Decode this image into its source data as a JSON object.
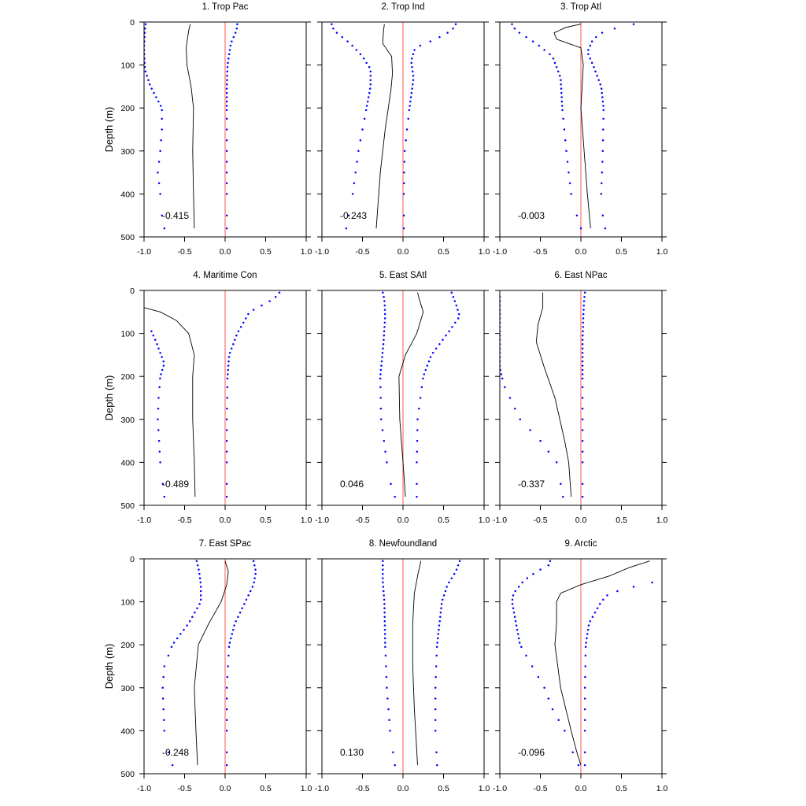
{
  "chart_data": {
    "type": "line",
    "layout": "3x3 panel grid",
    "ylabel": "Depth (m)",
    "xlim": [
      -1.0,
      1.0
    ],
    "ylim": [
      0,
      500
    ],
    "y_reversed": true,
    "xticks": [
      -1.0,
      -0.5,
      0.0,
      0.5,
      1.0
    ],
    "xtick_labels": [
      "-1.0",
      "-0.5",
      "0.0",
      "0.5",
      "1.0"
    ],
    "yticks": [
      0,
      100,
      200,
      300,
      400,
      500
    ],
    "ytick_labels": [
      "0",
      "100",
      "200",
      "300",
      "400",
      "500"
    ],
    "reference_line": {
      "x": 0,
      "color": "#ff7070"
    },
    "line_color": "#000000",
    "bound_color": "#0000ff",
    "grid": false,
    "depths": [
      5,
      15,
      25,
      35,
      45,
      55,
      65,
      75,
      85,
      95,
      105,
      115,
      125,
      135,
      145,
      155,
      165,
      175,
      185,
      195,
      205,
      225,
      250,
      275,
      300,
      325,
      350,
      375,
      400,
      450,
      480
    ],
    "panels": [
      {
        "title": "1. Trop Pac",
        "annotation": "-0.415",
        "line": [
          [
            5,
            -0.43
          ],
          [
            20,
            -0.45
          ],
          [
            60,
            -0.48
          ],
          [
            100,
            -0.47
          ],
          [
            150,
            -0.42
          ],
          [
            200,
            -0.39
          ],
          [
            300,
            -0.4
          ],
          [
            400,
            -0.39
          ],
          [
            480,
            -0.38
          ]
        ],
        "lower": [
          [
            5,
            -0.98
          ],
          [
            20,
            -0.99
          ],
          [
            60,
            -1.0
          ],
          [
            110,
            -0.99
          ],
          [
            150,
            -0.92
          ],
          [
            175,
            -0.85
          ],
          [
            200,
            -0.78
          ],
          [
            250,
            -0.78
          ],
          [
            300,
            -0.8
          ],
          [
            350,
            -0.83
          ],
          [
            400,
            -0.8
          ],
          [
            450,
            -0.78
          ],
          [
            480,
            -0.75
          ]
        ],
        "upper": [
          [
            5,
            0.15
          ],
          [
            20,
            0.14
          ],
          [
            50,
            0.07
          ],
          [
            100,
            0.03
          ],
          [
            150,
            0.02
          ],
          [
            200,
            0.02
          ],
          [
            300,
            0.02
          ],
          [
            400,
            0.02
          ],
          [
            480,
            0.02
          ]
        ]
      },
      {
        "title": "2. Trop Ind",
        "annotation": "-0.243",
        "line": [
          [
            5,
            -0.23
          ],
          [
            20,
            -0.24
          ],
          [
            50,
            -0.25
          ],
          [
            80,
            -0.14
          ],
          [
            120,
            -0.13
          ],
          [
            160,
            -0.15
          ],
          [
            250,
            -0.22
          ],
          [
            350,
            -0.28
          ],
          [
            480,
            -0.33
          ]
        ],
        "lower": [
          [
            5,
            -0.88
          ],
          [
            20,
            -0.85
          ],
          [
            50,
            -0.65
          ],
          [
            80,
            -0.5
          ],
          [
            110,
            -0.4
          ],
          [
            150,
            -0.4
          ],
          [
            200,
            -0.45
          ],
          [
            300,
            -0.55
          ],
          [
            400,
            -0.62
          ],
          [
            480,
            -0.7
          ]
        ],
        "upper": [
          [
            5,
            0.65
          ],
          [
            20,
            0.6
          ],
          [
            40,
            0.4
          ],
          [
            60,
            0.15
          ],
          [
            90,
            0.1
          ],
          [
            130,
            0.13
          ],
          [
            200,
            0.08
          ],
          [
            300,
            0.02
          ],
          [
            400,
            0.01
          ],
          [
            480,
            0.01
          ]
        ]
      },
      {
        "title": "3. Trop Atl",
        "annotation": "-0.003",
        "line": [
          [
            5,
            0.0
          ],
          [
            12,
            -0.18
          ],
          [
            25,
            -0.33
          ],
          [
            40,
            -0.3
          ],
          [
            60,
            0.0
          ],
          [
            100,
            0.03
          ],
          [
            200,
            0.0
          ],
          [
            300,
            0.04
          ],
          [
            400,
            0.08
          ],
          [
            480,
            0.12
          ]
        ],
        "lower": [
          [
            5,
            -0.85
          ],
          [
            20,
            -0.8
          ],
          [
            50,
            -0.55
          ],
          [
            80,
            -0.35
          ],
          [
            130,
            -0.25
          ],
          [
            200,
            -0.23
          ],
          [
            300,
            -0.18
          ],
          [
            400,
            -0.12
          ],
          [
            450,
            -0.05
          ],
          [
            480,
            0.0
          ]
        ],
        "upper": [
          [
            5,
            0.65
          ],
          [
            20,
            0.3
          ],
          [
            40,
            0.15
          ],
          [
            70,
            0.08
          ],
          [
            100,
            0.15
          ],
          [
            150,
            0.25
          ],
          [
            200,
            0.28
          ],
          [
            300,
            0.27
          ],
          [
            400,
            0.25
          ],
          [
            450,
            0.27
          ],
          [
            480,
            0.3
          ]
        ]
      },
      {
        "title": "4. Maritime Con",
        "annotation": "-0.489",
        "line": [
          [
            40,
            -1.0
          ],
          [
            50,
            -0.8
          ],
          [
            70,
            -0.6
          ],
          [
            100,
            -0.45
          ],
          [
            150,
            -0.38
          ],
          [
            200,
            -0.4
          ],
          [
            300,
            -0.4
          ],
          [
            400,
            -0.38
          ],
          [
            480,
            -0.37
          ]
        ],
        "lower": [
          [
            90,
            -0.92
          ],
          [
            120,
            -0.85
          ],
          [
            170,
            -0.75
          ],
          [
            200,
            -0.8
          ],
          [
            250,
            -0.82
          ],
          [
            300,
            -0.83
          ],
          [
            400,
            -0.8
          ],
          [
            480,
            -0.75
          ]
        ],
        "upper": [
          [
            5,
            0.67
          ],
          [
            20,
            0.6
          ],
          [
            50,
            0.3
          ],
          [
            100,
            0.15
          ],
          [
            150,
            0.05
          ],
          [
            200,
            0.03
          ],
          [
            300,
            0.02
          ],
          [
            400,
            0.02
          ],
          [
            480,
            0.02
          ]
        ]
      },
      {
        "title": "5. East SAtl",
        "annotation": "0.046",
        "line": [
          [
            5,
            0.18
          ],
          [
            20,
            0.2
          ],
          [
            50,
            0.25
          ],
          [
            100,
            0.17
          ],
          [
            150,
            0.03
          ],
          [
            200,
            -0.05
          ],
          [
            300,
            -0.04
          ],
          [
            400,
            0.0
          ],
          [
            480,
            0.03
          ]
        ],
        "lower": [
          [
            5,
            -0.25
          ],
          [
            20,
            -0.23
          ],
          [
            60,
            -0.22
          ],
          [
            120,
            -0.24
          ],
          [
            200,
            -0.28
          ],
          [
            300,
            -0.27
          ],
          [
            400,
            -0.2
          ],
          [
            450,
            -0.15
          ],
          [
            480,
            -0.1
          ]
        ],
        "upper": [
          [
            5,
            0.6
          ],
          [
            30,
            0.65
          ],
          [
            60,
            0.7
          ],
          [
            100,
            0.55
          ],
          [
            150,
            0.35
          ],
          [
            200,
            0.25
          ],
          [
            300,
            0.18
          ],
          [
            400,
            0.17
          ],
          [
            480,
            0.17
          ]
        ]
      },
      {
        "title": "6. East NPac",
        "annotation": "-0.337",
        "line": [
          [
            5,
            -0.47
          ],
          [
            40,
            -0.47
          ],
          [
            80,
            -0.53
          ],
          [
            120,
            -0.55
          ],
          [
            180,
            -0.45
          ],
          [
            250,
            -0.32
          ],
          [
            350,
            -0.2
          ],
          [
            400,
            -0.15
          ],
          [
            480,
            -0.12
          ]
        ],
        "lower": [
          [
            10,
            -1.0
          ],
          [
            60,
            -1.0
          ],
          [
            180,
            -1.0
          ],
          [
            220,
            -0.95
          ],
          [
            260,
            -0.85
          ],
          [
            300,
            -0.75
          ],
          [
            350,
            -0.5
          ],
          [
            400,
            -0.3
          ],
          [
            450,
            -0.25
          ],
          [
            480,
            -0.22
          ]
        ],
        "upper": [
          [
            5,
            0.05
          ],
          [
            20,
            0.04
          ],
          [
            60,
            0.03
          ],
          [
            120,
            0.02
          ],
          [
            200,
            0.02
          ],
          [
            300,
            0.02
          ],
          [
            400,
            0.02
          ],
          [
            480,
            0.02
          ]
        ]
      },
      {
        "title": "7. East SPac",
        "annotation": "-0.248",
        "line": [
          [
            5,
            0.0
          ],
          [
            30,
            0.04
          ],
          [
            60,
            0.02
          ],
          [
            100,
            -0.05
          ],
          [
            150,
            -0.2
          ],
          [
            200,
            -0.33
          ],
          [
            300,
            -0.38
          ],
          [
            400,
            -0.36
          ],
          [
            480,
            -0.34
          ]
        ],
        "lower": [
          [
            5,
            -0.35
          ],
          [
            30,
            -0.32
          ],
          [
            60,
            -0.3
          ],
          [
            100,
            -0.3
          ],
          [
            150,
            -0.45
          ],
          [
            200,
            -0.65
          ],
          [
            250,
            -0.75
          ],
          [
            300,
            -0.77
          ],
          [
            400,
            -0.75
          ],
          [
            450,
            -0.7
          ],
          [
            480,
            -0.65
          ]
        ],
        "upper": [
          [
            5,
            0.35
          ],
          [
            30,
            0.38
          ],
          [
            60,
            0.35
          ],
          [
            100,
            0.25
          ],
          [
            150,
            0.12
          ],
          [
            200,
            0.05
          ],
          [
            300,
            0.02
          ],
          [
            400,
            0.02
          ],
          [
            480,
            0.02
          ]
        ]
      },
      {
        "title": "8. Newfoundland",
        "annotation": "0.130",
        "line": [
          [
            5,
            0.22
          ],
          [
            40,
            0.18
          ],
          [
            80,
            0.14
          ],
          [
            150,
            0.12
          ],
          [
            250,
            0.12
          ],
          [
            350,
            0.14
          ],
          [
            480,
            0.18
          ]
        ],
        "lower": [
          [
            5,
            -0.25
          ],
          [
            50,
            -0.25
          ],
          [
            100,
            -0.23
          ],
          [
            200,
            -0.22
          ],
          [
            300,
            -0.2
          ],
          [
            400,
            -0.16
          ],
          [
            480,
            -0.1
          ]
        ],
        "upper": [
          [
            5,
            0.7
          ],
          [
            30,
            0.65
          ],
          [
            60,
            0.55
          ],
          [
            100,
            0.48
          ],
          [
            200,
            0.42
          ],
          [
            300,
            0.4
          ],
          [
            400,
            0.4
          ],
          [
            480,
            0.42
          ]
        ]
      },
      {
        "title": "9. Arctic",
        "annotation": "-0.096",
        "line": [
          [
            5,
            0.85
          ],
          [
            20,
            0.6
          ],
          [
            40,
            0.35
          ],
          [
            60,
            0.0
          ],
          [
            80,
            -0.25
          ],
          [
            100,
            -0.3
          ],
          [
            150,
            -0.3
          ],
          [
            200,
            -0.32
          ],
          [
            300,
            -0.25
          ],
          [
            400,
            -0.12
          ],
          [
            450,
            -0.05
          ],
          [
            480,
            0.0
          ]
        ],
        "lower": [
          [
            5,
            -0.38
          ],
          [
            15,
            -0.4
          ],
          [
            30,
            -0.55
          ],
          [
            50,
            -0.7
          ],
          [
            80,
            -0.83
          ],
          [
            100,
            -0.85
          ],
          [
            150,
            -0.8
          ],
          [
            200,
            -0.75
          ],
          [
            250,
            -0.6
          ],
          [
            300,
            -0.45
          ],
          [
            350,
            -0.35
          ],
          [
            400,
            -0.2
          ],
          [
            450,
            -0.1
          ],
          [
            480,
            -0.03
          ]
        ],
        "upper": [
          [
            55,
            0.88
          ],
          [
            65,
            0.65
          ],
          [
            80,
            0.35
          ],
          [
            100,
            0.25
          ],
          [
            150,
            0.1
          ],
          [
            200,
            0.06
          ],
          [
            300,
            0.05
          ],
          [
            400,
            0.05
          ],
          [
            480,
            0.05
          ]
        ]
      }
    ]
  }
}
